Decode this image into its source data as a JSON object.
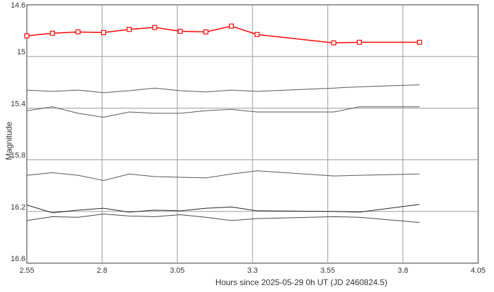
{
  "chart_data": {
    "type": "line",
    "title": "",
    "xlabel": "Hours since 2025-05-29 0h UT (JD 2460824.5)",
    "ylabel": "Magnitude",
    "xlim": [
      2.55,
      4.05
    ],
    "ylim": [
      14.6,
      16.6
    ],
    "y_inverted": true,
    "grid": true,
    "x_ticks": [
      "2.55",
      "2.8",
      "3.05",
      "3.3",
      "3.55",
      "3.8",
      "4.05"
    ],
    "y_ticks": [
      "14.6",
      "15",
      "15.4",
      "15.8",
      "16.2",
      "16.6"
    ],
    "x": [
      2.55,
      2.635,
      2.72,
      2.805,
      2.89,
      2.975,
      3.06,
      3.145,
      3.23,
      3.315,
      3.57,
      3.655,
      3.855
    ],
    "series": [
      {
        "color": "#ff0000",
        "markers": true,
        "values": [
          14.84,
          14.82,
          14.81,
          14.815,
          14.79,
          14.775,
          14.805,
          14.81,
          14.765,
          14.83,
          14.895,
          14.89,
          14.89
        ]
      },
      {
        "color": "#555555",
        "values": [
          15.26,
          15.27,
          15.26,
          15.28,
          15.265,
          15.245,
          15.265,
          15.275,
          15.26,
          15.27,
          15.245,
          15.235,
          15.22
        ]
      },
      {
        "color": "#555555",
        "values": [
          15.42,
          15.39,
          15.44,
          15.47,
          15.43,
          15.44,
          15.44,
          15.42,
          15.41,
          15.43,
          15.43,
          15.39,
          15.39
        ]
      },
      {
        "color": "#555555",
        "values": [
          15.92,
          15.9,
          15.92,
          15.96,
          15.91,
          15.93,
          15.935,
          15.94,
          15.91,
          15.885,
          15.925,
          15.92,
          15.91
        ]
      },
      {
        "color": "#222222",
        "values": [
          16.15,
          16.21,
          16.19,
          16.175,
          16.205,
          16.19,
          16.195,
          16.175,
          16.165,
          16.195,
          16.2,
          16.205,
          16.145
        ]
      },
      {
        "color": "#444444",
        "values": [
          16.27,
          16.24,
          16.245,
          16.22,
          16.235,
          16.24,
          16.225,
          16.245,
          16.27,
          16.255,
          16.24,
          16.245,
          16.285
        ]
      }
    ]
  }
}
